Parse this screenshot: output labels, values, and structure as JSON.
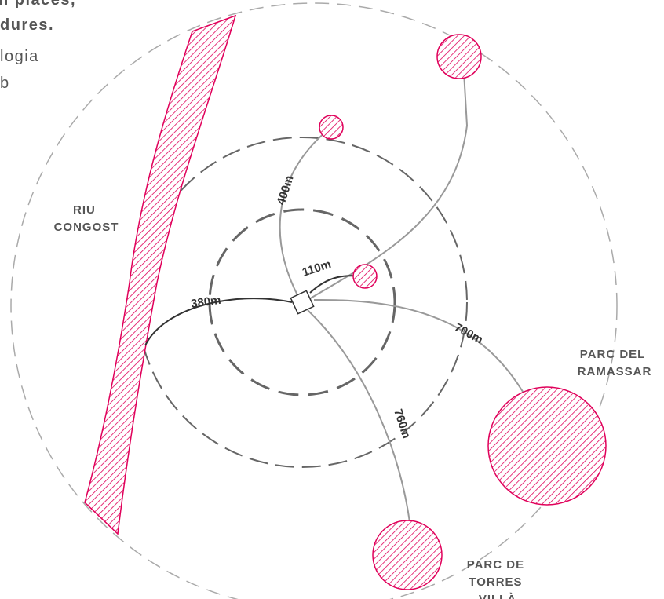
{
  "header_text": {
    "lines": [
      "n places,",
      "dures.",
      "logia",
      "b"
    ]
  },
  "labels": {
    "river": [
      "RIU",
      "CONGOST"
    ],
    "park_ramassar": [
      "PARC DEL",
      "RAMASSAR"
    ],
    "park_torres": [
      "PARC DE",
      "TORRES",
      "VILLÀ"
    ]
  },
  "distances": [
    "400m",
    "110m",
    "380m",
    "700m",
    "760m"
  ]
}
